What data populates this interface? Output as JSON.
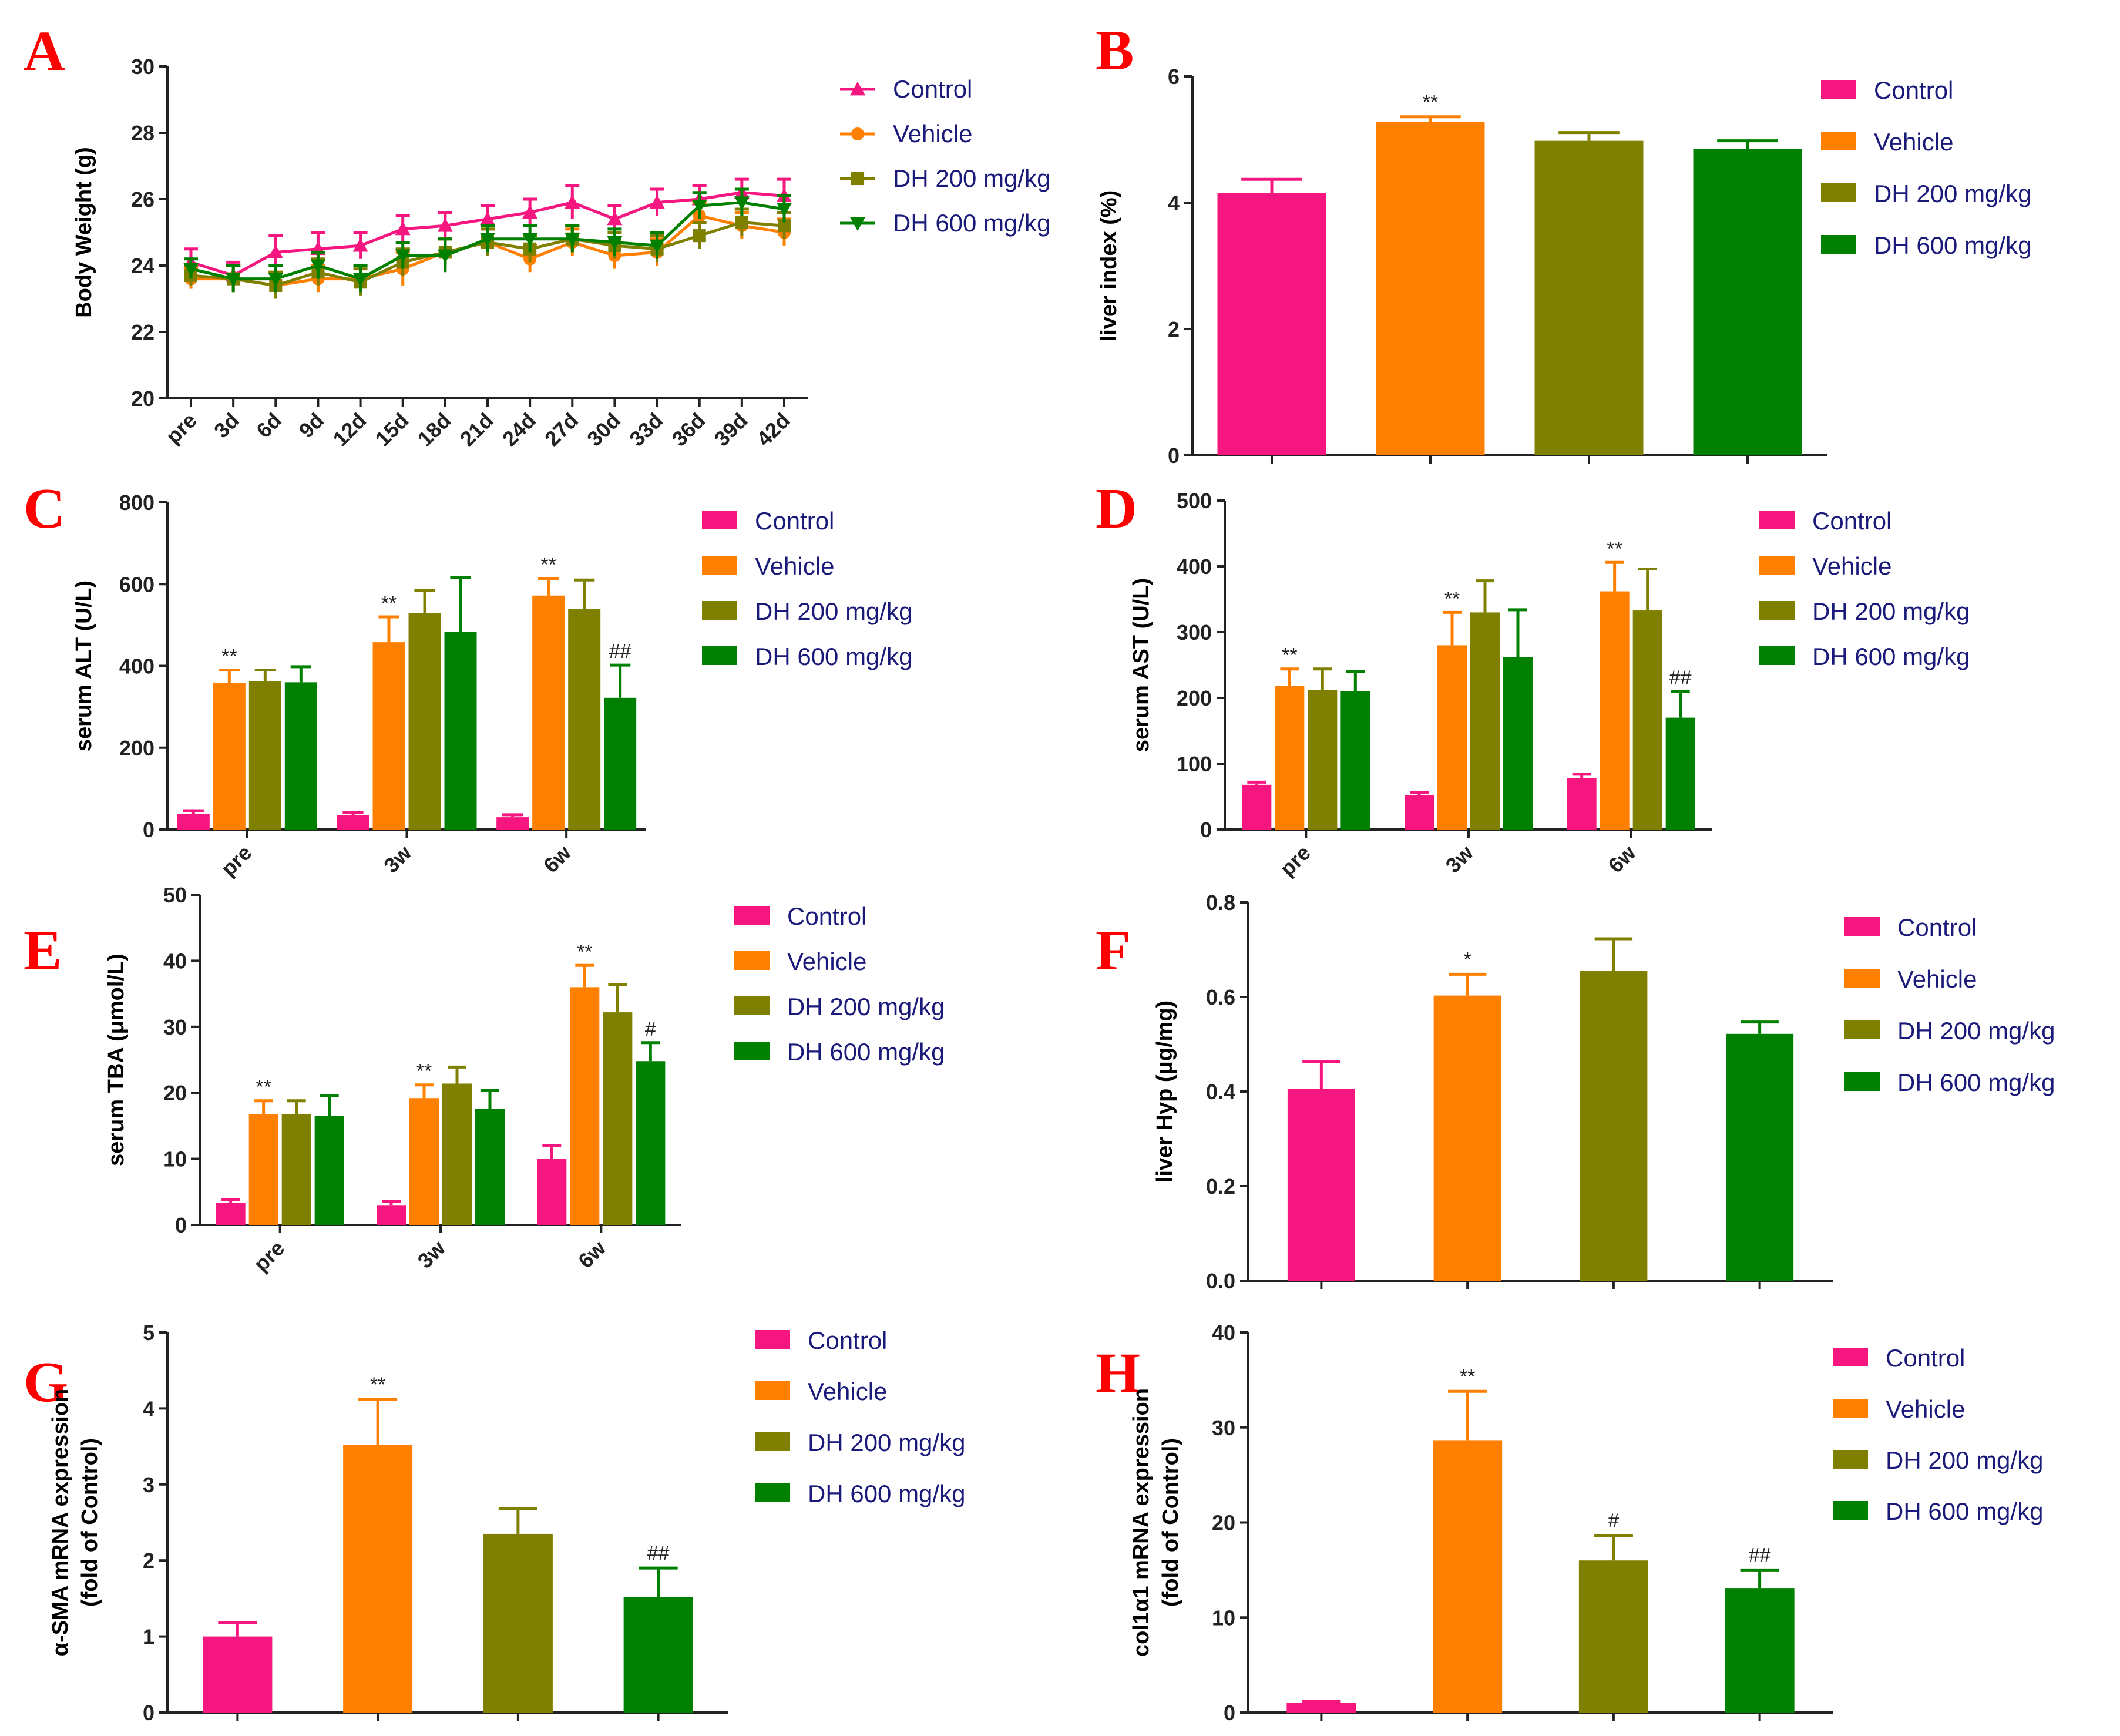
{
  "colors": {
    "control": "#f5177f",
    "vehicle": "#ff8000",
    "dh200": "#808000",
    "dh600": "#008000",
    "panel_label": "#ff0000",
    "legend_text": "#1a1a7a"
  },
  "legend": [
    "Control",
    "Vehicle",
    "DH 200 mg/kg",
    "DH 600 mg/kg"
  ],
  "chart_data": [
    {
      "id": "A",
      "type": "line",
      "panel_label": "A",
      "ylabel": "Body Weight (g)",
      "ylim": [
        20,
        30
      ],
      "yticks": [
        20,
        22,
        24,
        26,
        28,
        30
      ],
      "categories": [
        "pre",
        "3d",
        "6d",
        "9d",
        "12d",
        "15d",
        "18d",
        "21d",
        "24d",
        "27d",
        "30d",
        "33d",
        "36d",
        "39d",
        "42d"
      ],
      "series": [
        {
          "name": "Control",
          "marker": "triangle-up",
          "values": [
            24.1,
            23.7,
            24.4,
            24.5,
            24.6,
            25.1,
            25.2,
            25.4,
            25.6,
            25.9,
            25.4,
            25.9,
            26.0,
            26.2,
            26.1
          ],
          "errors": [
            0.4,
            0.4,
            0.5,
            0.5,
            0.4,
            0.4,
            0.4,
            0.4,
            0.4,
            0.5,
            0.4,
            0.4,
            0.4,
            0.4,
            0.5
          ]
        },
        {
          "name": "Vehicle",
          "marker": "circle",
          "values": [
            23.6,
            23.6,
            23.4,
            23.6,
            23.6,
            23.9,
            24.4,
            24.7,
            24.2,
            24.7,
            24.3,
            24.4,
            25.5,
            25.2,
            25.0
          ],
          "errors": [
            0.3,
            0.4,
            0.4,
            0.4,
            0.4,
            0.5,
            0.4,
            0.4,
            0.4,
            0.4,
            0.4,
            0.4,
            0.4,
            0.4,
            0.4
          ]
        },
        {
          "name": "DH 200 mg/kg",
          "marker": "square",
          "values": [
            23.7,
            23.6,
            23.4,
            23.8,
            23.5,
            24.1,
            24.4,
            24.7,
            24.5,
            24.8,
            24.6,
            24.5,
            24.9,
            25.3,
            25.2
          ],
          "errors": [
            0.3,
            0.4,
            0.4,
            0.4,
            0.4,
            0.4,
            0.4,
            0.4,
            0.4,
            0.4,
            0.4,
            0.4,
            0.4,
            0.4,
            0.4
          ]
        },
        {
          "name": "DH 600 mg/kg",
          "marker": "triangle-down",
          "values": [
            23.9,
            23.6,
            23.6,
            24.0,
            23.6,
            24.3,
            24.3,
            24.8,
            24.8,
            24.8,
            24.7,
            24.6,
            25.8,
            25.9,
            25.7
          ],
          "errors": [
            0.3,
            0.4,
            0.4,
            0.4,
            0.4,
            0.4,
            0.5,
            0.4,
            0.4,
            0.4,
            0.4,
            0.4,
            0.4,
            0.4,
            0.4
          ]
        }
      ]
    },
    {
      "id": "B",
      "type": "bar",
      "panel_label": "B",
      "ylabel": "liver index (%)",
      "ylim": [
        0,
        6
      ],
      "yticks": [
        0,
        2,
        4,
        6
      ],
      "categories": [
        "Control",
        "Vehicle",
        "DH 200 mg/kg",
        "DH 600 mg/kg"
      ],
      "values": [
        4.15,
        5.28,
        4.98,
        4.85
      ],
      "errors": [
        0.22,
        0.08,
        0.13,
        0.13
      ],
      "annotations": [
        "",
        "**",
        "",
        ""
      ]
    },
    {
      "id": "C",
      "type": "bar",
      "panel_label": "C",
      "ylabel": "serum ALT (U/L)",
      "ylim": [
        0,
        800
      ],
      "yticks": [
        0,
        200,
        400,
        600,
        800
      ],
      "categories": [
        "pre",
        "3w",
        "6w"
      ],
      "series": [
        {
          "name": "Control",
          "values": [
            38,
            35,
            30
          ],
          "errors": [
            8,
            7,
            6
          ],
          "annotations": [
            "",
            "",
            ""
          ]
        },
        {
          "name": "Vehicle",
          "values": [
            358,
            458,
            572
          ],
          "errors": [
            32,
            62,
            42
          ],
          "annotations": [
            "**",
            "**",
            "**"
          ]
        },
        {
          "name": "DH 200 mg/kg",
          "values": [
            362,
            530,
            540
          ],
          "errors": [
            28,
            55,
            70
          ],
          "annotations": [
            "",
            "",
            ""
          ]
        },
        {
          "name": "DH 600 mg/kg",
          "values": [
            360,
            484,
            322
          ],
          "errors": [
            38,
            132,
            80
          ],
          "annotations": [
            "",
            "",
            "##"
          ]
        }
      ]
    },
    {
      "id": "D",
      "type": "bar",
      "panel_label": "D",
      "ylabel": "serum AST (U/L)",
      "ylim": [
        0,
        500
      ],
      "yticks": [
        0,
        100,
        200,
        300,
        400,
        500
      ],
      "categories": [
        "pre",
        "3w",
        "6w"
      ],
      "series": [
        {
          "name": "Control",
          "values": [
            68,
            52,
            78
          ],
          "errors": [
            4,
            4,
            6
          ],
          "annotations": [
            "",
            "",
            ""
          ]
        },
        {
          "name": "Vehicle",
          "values": [
            218,
            280,
            362
          ],
          "errors": [
            26,
            50,
            44
          ],
          "annotations": [
            "**",
            "**",
            "**"
          ]
        },
        {
          "name": "DH 200 mg/kg",
          "values": [
            212,
            330,
            333
          ],
          "errors": [
            32,
            48,
            63
          ],
          "annotations": [
            "",
            "",
            ""
          ]
        },
        {
          "name": "DH 600 mg/kg",
          "values": [
            210,
            262,
            170
          ],
          "errors": [
            30,
            72,
            40
          ],
          "annotations": [
            "",
            "",
            "##"
          ]
        }
      ]
    },
    {
      "id": "E",
      "type": "bar",
      "panel_label": "E",
      "ylabel": "serum TBA (μmol/L)",
      "ylim": [
        0,
        50
      ],
      "yticks": [
        0,
        10,
        20,
        30,
        40,
        50
      ],
      "categories": [
        "pre",
        "3w",
        "6w"
      ],
      "series": [
        {
          "name": "Control",
          "values": [
            3.3,
            3.0,
            10.0
          ],
          "errors": [
            0.5,
            0.6,
            2.0
          ],
          "annotations": [
            "",
            "",
            ""
          ]
        },
        {
          "name": "Vehicle",
          "values": [
            16.8,
            19.2,
            36.0
          ],
          "errors": [
            2.0,
            2.0,
            3.3
          ],
          "annotations": [
            "**",
            "**",
            "**"
          ]
        },
        {
          "name": "DH 200 mg/kg",
          "values": [
            16.8,
            21.4,
            32.2
          ],
          "errors": [
            2.0,
            2.5,
            4.2
          ],
          "annotations": [
            "",
            "",
            ""
          ]
        },
        {
          "name": "DH 600 mg/kg",
          "values": [
            16.5,
            17.6,
            24.8
          ],
          "errors": [
            3.1,
            2.8,
            2.8
          ],
          "annotations": [
            "",
            "",
            "#"
          ]
        }
      ]
    },
    {
      "id": "F",
      "type": "bar",
      "panel_label": "F",
      "ylabel": "liver Hyp (μg/mg)",
      "ylim": [
        0,
        0.8
      ],
      "yticks": [
        "0.0",
        "0.2",
        "0.4",
        "0.6",
        "0.8"
      ],
      "categories": [
        "Control",
        "Vehicle",
        "DH 200 mg/kg",
        "DH 600 mg/kg"
      ],
      "values": [
        0.405,
        0.603,
        0.655,
        0.522
      ],
      "errors": [
        0.058,
        0.045,
        0.068,
        0.025
      ],
      "annotations": [
        "",
        "*",
        "",
        ""
      ]
    },
    {
      "id": "G",
      "type": "bar",
      "panel_label": "G",
      "ylabel": [
        "α-SMA mRNA expression",
        "(fold of Control)"
      ],
      "ylim": [
        0,
        5
      ],
      "yticks": [
        0,
        1,
        2,
        3,
        4,
        5
      ],
      "categories": [
        "Control",
        "Vehicle",
        "DH 200 mg/kg",
        "DH 600 mg/kg"
      ],
      "values": [
        1.0,
        3.52,
        2.35,
        1.52
      ],
      "errors": [
        0.18,
        0.6,
        0.33,
        0.38
      ],
      "annotations": [
        "",
        "**",
        "",
        "##"
      ]
    },
    {
      "id": "H",
      "type": "bar",
      "panel_label": "H",
      "ylabel": [
        "col1α1 mRNA expression",
        "(fold of Control)"
      ],
      "ylim": [
        0,
        40
      ],
      "yticks": [
        0,
        10,
        20,
        30,
        40
      ],
      "categories": [
        "Control",
        "Vehicle",
        "DH 200 mg/kg",
        "DH 600 mg/kg"
      ],
      "values": [
        1.0,
        28.6,
        16.0,
        13.1
      ],
      "errors": [
        0.2,
        5.2,
        2.6,
        1.9
      ],
      "annotations": [
        "",
        "**",
        "#",
        "##"
      ]
    }
  ]
}
